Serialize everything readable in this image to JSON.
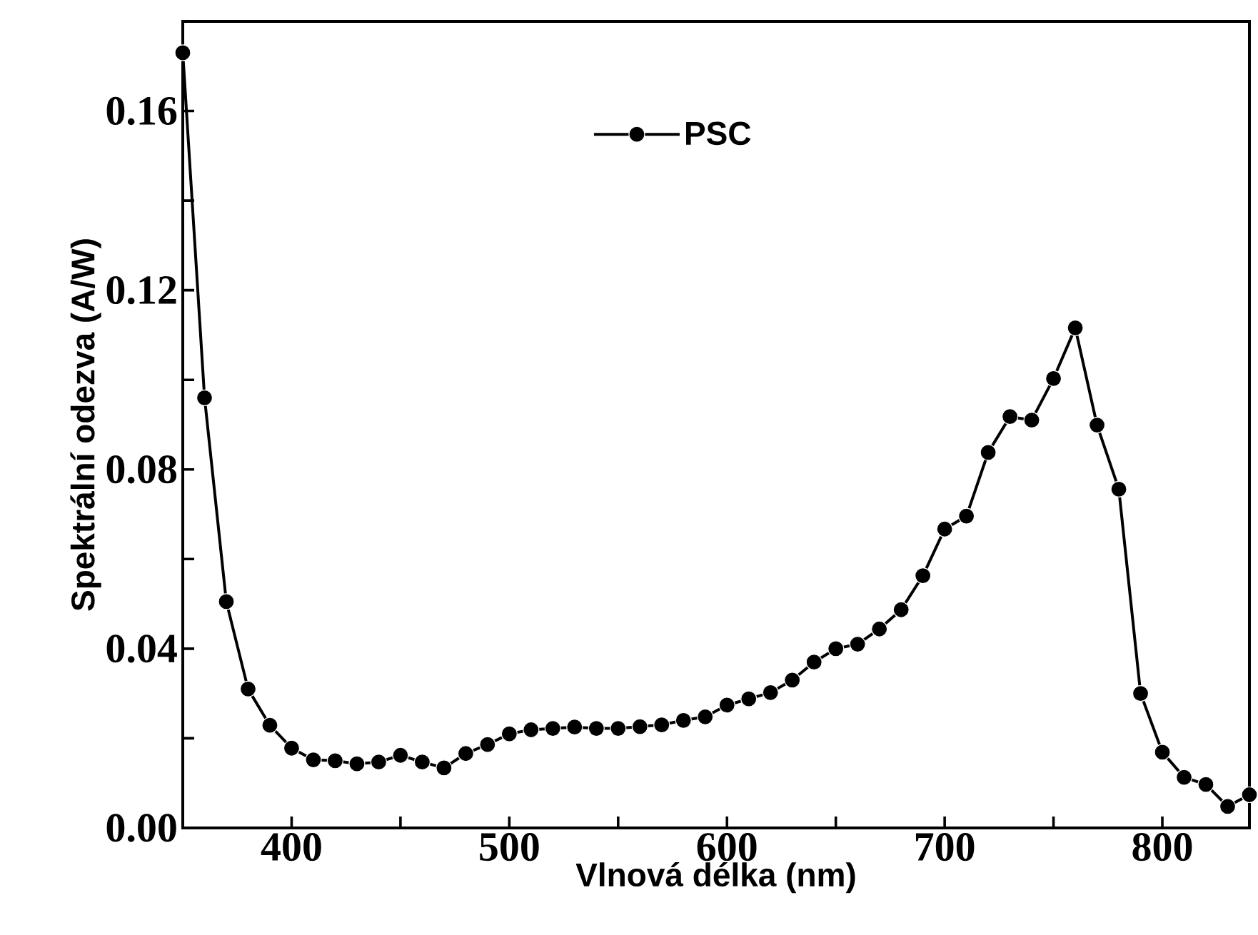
{
  "chart_data": {
    "type": "line",
    "xlabel": "Vlnová délka (nm)",
    "ylabel": "Spektrální odezva (A/W)",
    "x": [
      350,
      360,
      370,
      380,
      390,
      400,
      410,
      420,
      430,
      440,
      450,
      460,
      470,
      480,
      490,
      500,
      510,
      520,
      530,
      540,
      550,
      560,
      570,
      580,
      590,
      600,
      610,
      620,
      630,
      640,
      650,
      660,
      670,
      680,
      690,
      700,
      710,
      720,
      730,
      740,
      750,
      760,
      770,
      780,
      790,
      800,
      810,
      820,
      830,
      840
    ],
    "series": [
      {
        "name": "PSC",
        "color": "#000000",
        "values": [
          0.173,
          0.096,
          0.0505,
          0.031,
          0.0229,
          0.0178,
          0.0152,
          0.015,
          0.0143,
          0.0147,
          0.0162,
          0.0147,
          0.0134,
          0.0166,
          0.0186,
          0.021,
          0.0219,
          0.0222,
          0.0225,
          0.0222,
          0.0222,
          0.0226,
          0.023,
          0.024,
          0.0248,
          0.0274,
          0.0288,
          0.0302,
          0.033,
          0.037,
          0.04,
          0.041,
          0.0444,
          0.0487,
          0.0563,
          0.0667,
          0.0696,
          0.0838,
          0.0918,
          0.091,
          0.1003,
          0.1116,
          0.0899,
          0.0756,
          0.03,
          0.0169,
          0.0113,
          0.0097,
          0.0048,
          0.0074
        ]
      }
    ],
    "xlim": [
      350,
      840
    ],
    "ylim": [
      0,
      0.18
    ],
    "xticks": [
      {
        "value": 350,
        "label": null
      },
      400,
      {
        "value": 450,
        "label": null
      },
      500,
      {
        "value": 550,
        "label": null
      },
      600,
      {
        "value": 650,
        "label": null
      },
      700,
      {
        "value": 750,
        "label": null
      },
      800
    ],
    "yticks": [
      {
        "value": 0,
        "label": "0.00"
      },
      {
        "value": 0.02,
        "label": null
      },
      0.04,
      {
        "value": 0.06,
        "label": null
      },
      0.08,
      {
        "value": 0.1,
        "label": null
      },
      0.12,
      {
        "value": 0.14,
        "label": null
      },
      0.16
    ],
    "grid": false,
    "legend": "top",
    "marker": "circle",
    "line_style": "solid"
  }
}
